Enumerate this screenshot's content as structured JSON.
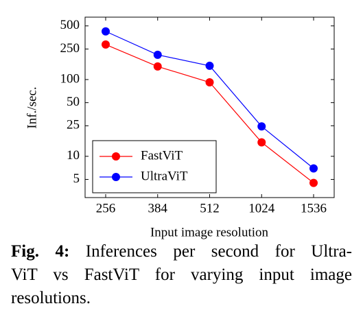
{
  "chart_data": {
    "type": "line",
    "xlabel": "Input image resolution",
    "ylabel": "Inf./sec.",
    "categories": [
      "256",
      "384",
      "512",
      "1024",
      "1536"
    ],
    "series": [
      {
        "name": "FastViT",
        "color": "#ff0000",
        "values": [
          286,
          148,
          92,
          15.2,
          4.5
        ]
      },
      {
        "name": "UltraViT",
        "color": "#0000ff",
        "values": [
          424,
          210,
          151,
          24.5,
          6.95
        ]
      }
    ],
    "ylim": [
      2.9,
      650
    ],
    "yticks": [
      5,
      10,
      25,
      50,
      100,
      250,
      500
    ],
    "ylog": true,
    "legend": "lower left"
  },
  "caption": {
    "label": "Fig. 4:",
    "lines": [
      "Inferences per second for Ultra-",
      "ViT vs FastViT for varying input image",
      "resolutions."
    ]
  }
}
